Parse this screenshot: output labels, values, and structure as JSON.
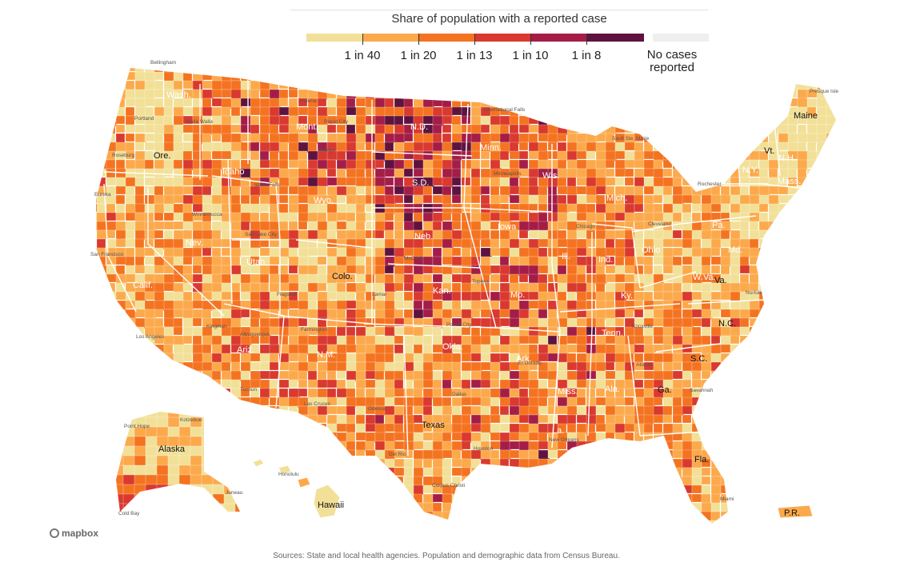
{
  "legend": {
    "title": "Share of population with a reported case",
    "bins": [
      {
        "color": "#f2e098"
      },
      {
        "color": "#fca94c"
      },
      {
        "color": "#f47321"
      },
      {
        "color": "#d9392f"
      },
      {
        "color": "#a41d47"
      },
      {
        "color": "#5e133f"
      }
    ],
    "ticks": [
      "1 in 40",
      "1 in 20",
      "1 in 13",
      "1 in 10",
      "1 in 8"
    ],
    "no_cases_label": "No cases reported",
    "no_cases_color": "#efefef"
  },
  "states": [
    {
      "label": "Wash.",
      "light": false
    },
    {
      "label": "Ore.",
      "light": true
    },
    {
      "label": "Calif.",
      "light": false
    },
    {
      "label": "Idaho",
      "light": false
    },
    {
      "label": "Nev.",
      "light": false
    },
    {
      "label": "Mont.",
      "light": false
    },
    {
      "label": "Wyo.",
      "light": false
    },
    {
      "label": "Utah",
      "light": false
    },
    {
      "label": "Ariz.",
      "light": false
    },
    {
      "label": "Colo.",
      "light": true
    },
    {
      "label": "N.M.",
      "light": false
    },
    {
      "label": "N.D.",
      "light": false
    },
    {
      "label": "S.D.",
      "light": false
    },
    {
      "label": "Neb.",
      "light": false
    },
    {
      "label": "Kan.",
      "light": false
    },
    {
      "label": "Okla.",
      "light": false
    },
    {
      "label": "Texas",
      "light": true
    },
    {
      "label": "Minn.",
      "light": false
    },
    {
      "label": "Iowa",
      "light": false
    },
    {
      "label": "Mo.",
      "light": false
    },
    {
      "label": "Ark.",
      "light": false
    },
    {
      "label": "La.",
      "light": false
    },
    {
      "label": "Wis.",
      "light": false
    },
    {
      "label": "Ill.",
      "light": false
    },
    {
      "label": "Miss.",
      "light": false
    },
    {
      "label": "Mich.",
      "light": false
    },
    {
      "label": "Ind.",
      "light": false
    },
    {
      "label": "Ky.",
      "light": false
    },
    {
      "label": "Tenn.",
      "light": false
    },
    {
      "label": "Ala.",
      "light": false
    },
    {
      "label": "Ohio",
      "light": false
    },
    {
      "label": "Ga.",
      "light": true
    },
    {
      "label": "Fla.",
      "light": true
    },
    {
      "label": "S.C.",
      "light": true
    },
    {
      "label": "N.C.",
      "light": true
    },
    {
      "label": "Va.",
      "light": true
    },
    {
      "label": "W.Va.",
      "light": false
    },
    {
      "label": "Pa.",
      "light": false
    },
    {
      "label": "N.Y.",
      "light": false
    },
    {
      "label": "Vt.",
      "light": true
    },
    {
      "label": "N.H.",
      "light": false
    },
    {
      "label": "Maine",
      "light": true
    },
    {
      "label": "Mass.",
      "light": false
    },
    {
      "label": "Md.",
      "light": false
    },
    {
      "label": "Alaska",
      "light": true
    },
    {
      "label": "Hawaii",
      "light": true
    },
    {
      "label": "P.R.",
      "light": true
    }
  ],
  "cities": [
    "Bellingham",
    "Portland",
    "Walla Walla",
    "Roseburg",
    "Eureka",
    "Helena",
    "Billings",
    "Idaho Falls",
    "Winnemucca",
    "San Francisco",
    "Los Angeles",
    "Salt Lake City",
    "Flagstaff",
    "Tucson",
    "Kingman",
    "Las Cruces",
    "Farmington",
    "Albuquerque",
    "Odessa",
    "Del Rio",
    "Corpus Christi",
    "Houston",
    "Dallas",
    "Lamar",
    "McCook",
    "Topeka",
    "Ponca City",
    "Rapid City",
    "Minneapolis",
    "International Falls",
    "Chicago",
    "El Dorado",
    "New Orleans",
    "Atlanta",
    "Knoxville",
    "Cleveland",
    "Rochester",
    "Savannah",
    "Miami",
    "Presque Isle",
    "Sault Ste. Marie",
    "Point Hope",
    "Kotzebue",
    "Juneau",
    "Cold Bay",
    "Honolulu",
    "Norfolk"
  ],
  "mapbox_label": "mapbox",
  "source": "Sources: State and local health agencies. Population and demographic data from Census Bureau."
}
